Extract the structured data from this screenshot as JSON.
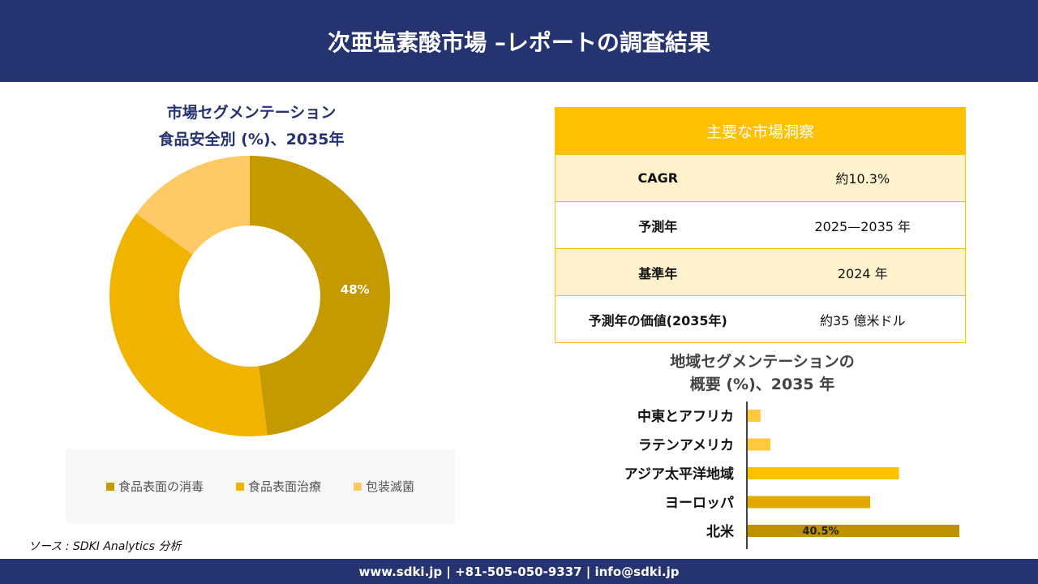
{
  "header": {
    "title": "次亜塩素酸市場 –レポートの調査結果"
  },
  "footer": {
    "text": "www.sdki.jp | +81-505-050-9337 | info@sdki.jp"
  },
  "source": "ソース : SDKI Analytics 分析",
  "insights": {
    "title": "主要な市場洞察",
    "rows": [
      {
        "label": "CAGR",
        "value": "約10.3%"
      },
      {
        "label": "予測年",
        "value": "2025—2035 年"
      },
      {
        "label": "基準年",
        "value": "2024 年"
      },
      {
        "label": "予測年の価値(2035年)",
        "value": "約35 億米ドル"
      }
    ]
  },
  "chart_data": [
    {
      "type": "pie",
      "title_line1": "市場セグメンテーション",
      "title_line2": "食品安全別 (%)、2035年",
      "categories": [
        "食品表面の消毒",
        "食品表面治療",
        "包装滅菌"
      ],
      "values": [
        48,
        37,
        15
      ],
      "labels": [
        "48%",
        "",
        ""
      ],
      "colors": [
        "#C49A00",
        "#F0B400",
        "#FFC966"
      ],
      "legend": "bottom"
    },
    {
      "type": "bar",
      "orientation": "horizontal",
      "title_line1": "地域セグメンテーションの",
      "title_line2": "概要 (%)、2035 年",
      "categories": [
        "中東とアフリカ",
        "ラテンアメリカ",
        "アジア太平洋地域",
        "ヨーロッパ",
        "北米"
      ],
      "values": [
        2.6,
        4.5,
        29,
        23.5,
        40.5
      ],
      "labels": [
        "",
        "",
        "",
        "",
        "40.5%"
      ],
      "colors": [
        "#FFC83D",
        "#FFC83D",
        "#FFC000",
        "#E0A800",
        "#BF9000"
      ]
    }
  ]
}
